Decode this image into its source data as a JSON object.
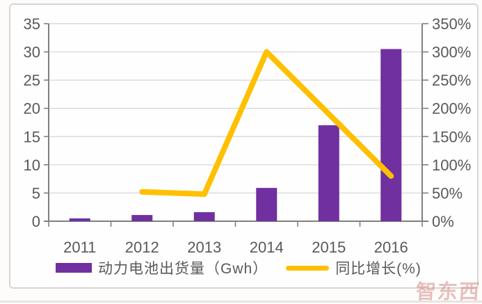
{
  "chart_data": {
    "type": "bar",
    "subtype": "combo-bar-line",
    "title": "",
    "categories": [
      "2011",
      "2012",
      "2013",
      "2014",
      "2015",
      "2016"
    ],
    "series": [
      {
        "name": "动力电池出货量（Gwh）",
        "type": "bar",
        "axis": "left",
        "color": "#7030A0",
        "values": [
          0.5,
          1.1,
          1.6,
          5.9,
          17,
          30.5
        ]
      },
      {
        "name": "同比增长(%)",
        "type": "line",
        "axis": "right",
        "color": "#FFC000",
        "values": [
          null,
          52,
          48,
          300,
          190,
          80
        ]
      }
    ],
    "left_axis": {
      "tick_labels": [
        "0",
        "5",
        "10",
        "15",
        "20",
        "25",
        "30",
        "35"
      ],
      "min": 0,
      "max": 35
    },
    "right_axis": {
      "tick_labels": [
        "0%",
        "50%",
        "100%",
        "150%",
        "200%",
        "250%",
        "300%",
        "350%"
      ],
      "min": 0,
      "max": 350
    },
    "legend_position": "bottom",
    "grid": "horizontal"
  },
  "style": {
    "bar_color": "#7030A0",
    "line_color": "#FFC000",
    "grid_color": "#D9D9D9",
    "axis_color": "#808080",
    "label_color": "#595959"
  },
  "watermark": {
    "text": "智东西"
  }
}
